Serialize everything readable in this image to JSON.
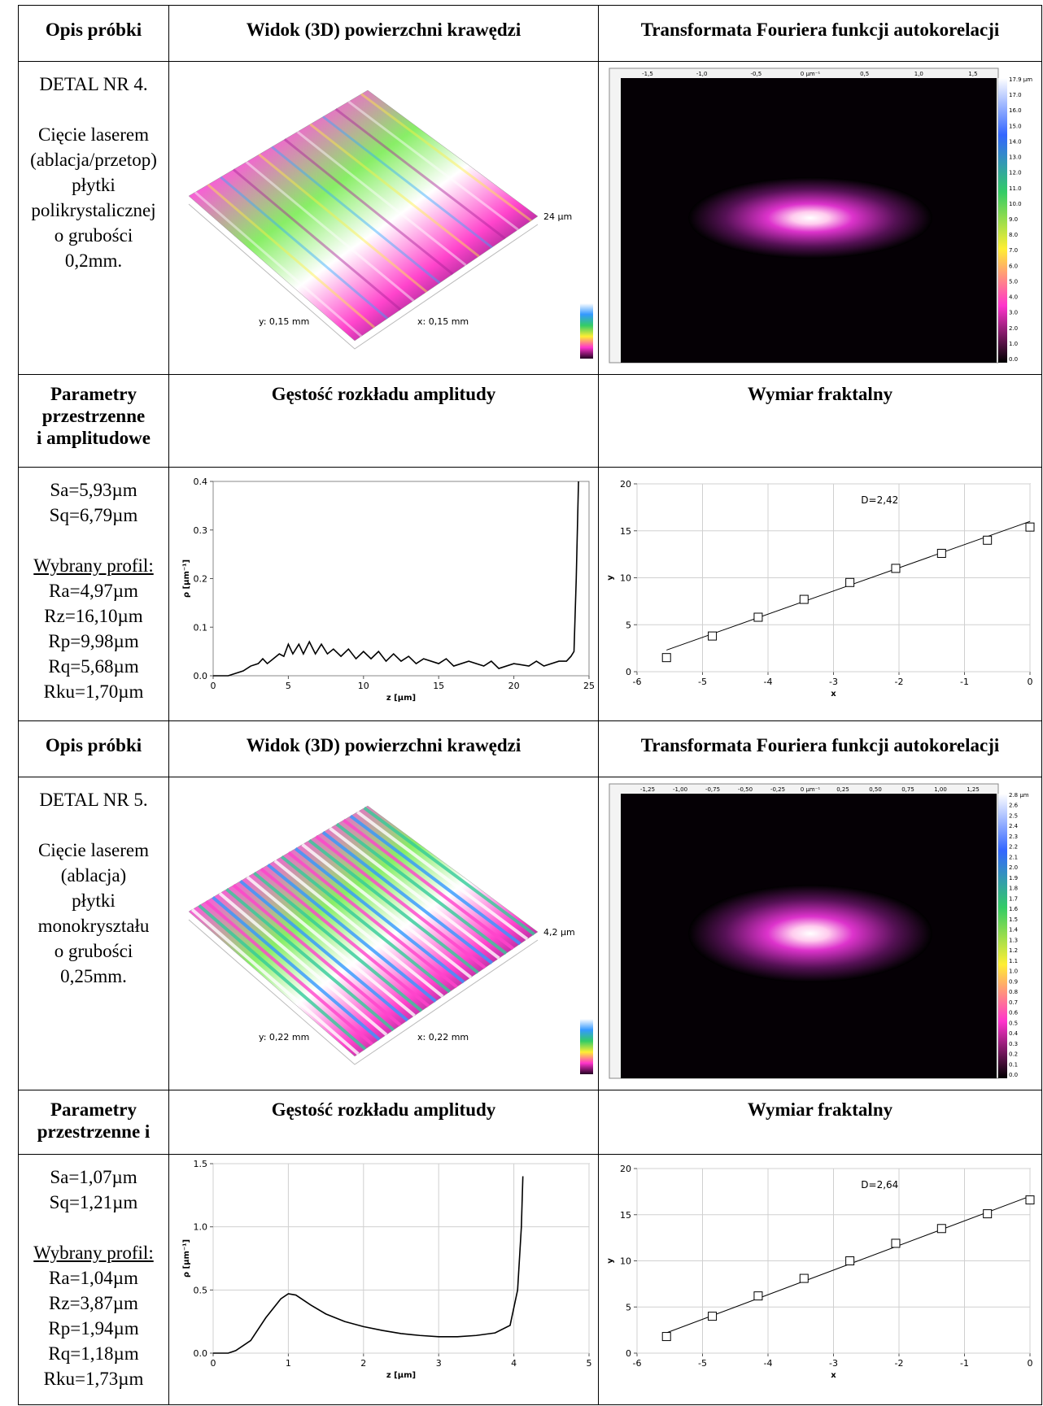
{
  "sections": [
    {
      "header": {
        "col1": "Opis próbki",
        "col2": "Widok (3D) powierzchni krawędzi",
        "col3": "Transformata Fouriera funkcji autokorelacji"
      },
      "sample": {
        "title": "DETAL NR 4.",
        "description": [
          "Cięcie laserem",
          "(ablacja/przetop)",
          "płytki",
          "polikrystalicznej",
          "o grubości",
          "0,2mm."
        ]
      },
      "surface": {
        "height_label": "24 µm",
        "y_label": "y: 0,15 mm",
        "x_label": "x: 0,15 mm"
      },
      "fft": {
        "top_labels": [
          "-1,5",
          "-1,0",
          "-0,5",
          "0 µm⁻¹",
          "0,5",
          "1,0",
          "1,5"
        ],
        "colorbar_labels": [
          "17.9 µm",
          "17.0",
          "16.0",
          "15.0",
          "14.0",
          "13.0",
          "12.0",
          "11.0",
          "10.0",
          "9.0",
          "8.0",
          "7.0",
          "6.0",
          "5.0",
          "4.0",
          "3.0",
          "2.0",
          "1.0",
          "0.0"
        ]
      },
      "header2": {
        "col1": [
          "Parametry",
          "przestrzenne",
          "i amplitudowe"
        ],
        "col2": "Gęstość rozkładu amplitudy",
        "col3": "Wymiar fraktalny"
      },
      "parameters": {
        "surface": [
          "Sa=5,93µm",
          "Sq=6,79µm"
        ],
        "profile_title": "Wybrany profil:",
        "profile": [
          "Ra=4,97µm",
          "Rz=16,10µm",
          "Rp=9,98µm",
          "Rq=5,68µm",
          "Rku=1,70µm"
        ]
      },
      "density": {
        "type": "line",
        "xlabel": "z [µm]",
        "ylabel": "ρ [µm⁻¹]",
        "color": "#000000",
        "grid": false,
        "x": [
          0,
          1,
          1.5,
          2,
          2.5,
          3,
          3.3,
          3.6,
          4,
          4.4,
          4.7,
          5,
          5.3,
          5.7,
          6,
          6.4,
          6.8,
          7.2,
          7.6,
          8,
          8.5,
          9,
          9.5,
          10,
          10.5,
          11,
          11.5,
          12,
          12.5,
          13,
          13.5,
          14,
          15,
          15.5,
          16,
          17,
          18,
          18.5,
          19,
          20,
          21,
          21.5,
          22,
          23,
          23.5,
          23.8,
          24,
          24.15,
          24.3
        ],
        "values": [
          0,
          0,
          0.005,
          0.01,
          0.02,
          0.025,
          0.035,
          0.025,
          0.035,
          0.045,
          0.04,
          0.065,
          0.045,
          0.065,
          0.045,
          0.07,
          0.045,
          0.065,
          0.045,
          0.055,
          0.04,
          0.055,
          0.035,
          0.05,
          0.035,
          0.05,
          0.03,
          0.045,
          0.03,
          0.04,
          0.025,
          0.035,
          0.025,
          0.035,
          0.02,
          0.03,
          0.02,
          0.03,
          0.015,
          0.025,
          0.02,
          0.03,
          0.02,
          0.03,
          0.03,
          0.04,
          0.05,
          0.2,
          0.4
        ],
        "xlim": [
          0,
          25
        ],
        "ylim": [
          0,
          0.4
        ],
        "xticks": [
          0,
          5,
          10,
          15,
          20,
          25
        ],
        "yticks": [
          {
            "value": 0,
            "label": "0.0"
          },
          {
            "value": 0.1,
            "label": "0.1"
          },
          {
            "value": 0.2,
            "label": "0.2"
          },
          {
            "value": 0.3,
            "label": "0.3"
          },
          {
            "value": 0.4,
            "label": "0.4"
          }
        ]
      },
      "fractal": {
        "type": "scatter",
        "xlabel": "x",
        "ylabel": "y",
        "annotation": "D=2,42",
        "color": "#000000",
        "grid": true,
        "x": [
          -5.55,
          -4.85,
          -4.15,
          -3.45,
          -2.75,
          -2.05,
          -1.35,
          -0.65,
          0
        ],
        "values": [
          1.5,
          3.8,
          5.8,
          7.7,
          9.5,
          11,
          12.6,
          14,
          15.4
        ],
        "fit": {
          "x": [
            -5.55,
            0
          ],
          "values": [
            2.3,
            16
          ]
        },
        "xlim": [
          -6,
          0
        ],
        "ylim": [
          0,
          20
        ],
        "xticks": [
          -6,
          -5,
          -4,
          -3,
          -2,
          -1,
          0
        ],
        "yticks": [
          0,
          5,
          10,
          15,
          20
        ]
      }
    },
    {
      "header": {
        "col1": "Opis próbki",
        "col2": "Widok (3D) powierzchni krawędzi",
        "col3": "Transformata Fouriera funkcji autokorelacji"
      },
      "sample": {
        "title": "DETAL NR 5.",
        "description": [
          "Cięcie laserem",
          "(ablacja)",
          "płytki",
          "monokryształu",
          "o grubości",
          "0,25mm."
        ]
      },
      "surface": {
        "height_label": "4,2 µm",
        "y_label": "y: 0,22 mm",
        "x_label": "x: 0,22 mm"
      },
      "fft": {
        "top_labels": [
          "-1,25",
          "-1,00",
          "-0,75",
          "-0,50",
          "-0,25",
          "0 µm⁻¹",
          "0,25",
          "0,50",
          "0,75",
          "1,00",
          "1,25"
        ],
        "colorbar_labels": [
          "2.8 µm",
          "2.6",
          "2.5",
          "2.4",
          "2.3",
          "2.2",
          "2.1",
          "2.0",
          "1.9",
          "1.8",
          "1.7",
          "1.6",
          "1.5",
          "1.4",
          "1.3",
          "1.2",
          "1.1",
          "1.0",
          "0.9",
          "0.8",
          "0.7",
          "0.6",
          "0.5",
          "0.4",
          "0.3",
          "0.2",
          "0.1",
          "0.0"
        ]
      },
      "header2": {
        "col1": [
          "Parametry",
          "przestrzenne i"
        ],
        "col2": "Gęstość rozkładu amplitudy",
        "col3": "Wymiar fraktalny"
      },
      "parameters": {
        "surface": [
          "Sa=1,07µm",
          "Sq=1,21µm"
        ],
        "profile_title": "Wybrany profil:",
        "profile": [
          "Ra=1,04µm",
          "Rz=3,87µm",
          "Rp=1,94µm",
          "Rq=1,18µm",
          "Rku=1,73µm"
        ]
      },
      "density": {
        "type": "line",
        "xlabel": "z [µm]",
        "ylabel": "ρ [µm⁻¹]",
        "color": "#000000",
        "grid": true,
        "x": [
          0,
          0.2,
          0.3,
          0.5,
          0.7,
          0.9,
          1.0,
          1.1,
          1.3,
          1.5,
          1.75,
          2,
          2.25,
          2.5,
          2.75,
          3,
          3.25,
          3.5,
          3.75,
          3.95,
          4.05,
          4.1,
          4.12
        ],
        "values": [
          0,
          0,
          0.02,
          0.1,
          0.28,
          0.43,
          0.47,
          0.46,
          0.38,
          0.31,
          0.25,
          0.21,
          0.18,
          0.155,
          0.14,
          0.13,
          0.13,
          0.14,
          0.16,
          0.22,
          0.5,
          1.0,
          1.4
        ],
        "xlim": [
          0,
          5
        ],
        "ylim": [
          0,
          1.5
        ],
        "xticks": [
          0,
          1,
          2,
          3,
          4,
          5
        ],
        "yticks": [
          {
            "value": 0,
            "label": "0.0"
          },
          {
            "value": 0.5,
            "label": "0.5"
          },
          {
            "value": 1,
            "label": "1.0"
          },
          {
            "value": 1.5,
            "label": "1.5"
          }
        ]
      },
      "fractal": {
        "type": "scatter",
        "xlabel": "x",
        "ylabel": "y",
        "annotation": "D=2,64",
        "color": "#000000",
        "grid": true,
        "x": [
          -5.55,
          -4.85,
          -4.15,
          -3.45,
          -2.75,
          -2.05,
          -1.35,
          -0.65,
          0
        ],
        "values": [
          1.8,
          4,
          6.2,
          8.1,
          10,
          11.9,
          13.5,
          15.1,
          16.6
        ],
        "fit": {
          "x": [
            -5.55,
            0
          ],
          "values": [
            2.2,
            17
          ]
        },
        "xlim": [
          -6,
          0
        ],
        "ylim": [
          0,
          20
        ],
        "xticks": [
          -6,
          -5,
          -4,
          -3,
          -2,
          -1,
          0
        ],
        "yticks": [
          0,
          5,
          10,
          15,
          20
        ]
      }
    }
  ]
}
